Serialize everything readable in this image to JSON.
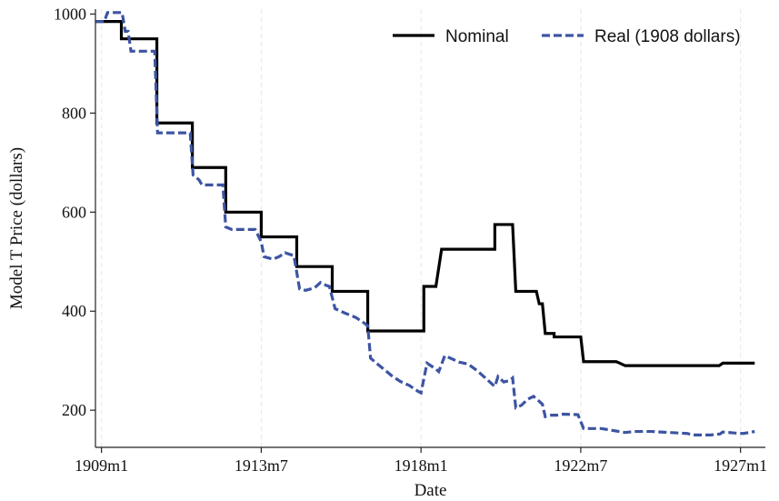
{
  "chart_data": {
    "type": "line",
    "title": "",
    "xlabel": "Date",
    "ylabel": "Model T Price (dollars)",
    "xlim": [
      1908.83,
      1927.7
    ],
    "ylim": [
      125,
      1010
    ],
    "x_ticks": [
      {
        "value": 1909.0,
        "label": "1909m1"
      },
      {
        "value": 1913.5,
        "label": "1913m7"
      },
      {
        "value": 1918.0,
        "label": "1918m1"
      },
      {
        "value": 1922.5,
        "label": "1922m7"
      },
      {
        "value": 1927.0,
        "label": "1927m1"
      }
    ],
    "y_ticks": [
      200,
      400,
      600,
      800,
      1000
    ],
    "grid": "vertical dashed at x ticks",
    "legend": {
      "placement": "top-right",
      "entries": [
        {
          "name": "Nominal",
          "color": "#000000",
          "style": "solid"
        },
        {
          "name": "Real (1908 dollars)",
          "color": "#3d54a2",
          "style": "dashed"
        }
      ]
    },
    "series": [
      {
        "name": "Nominal",
        "color": "#000000",
        "style": "solid",
        "points": [
          [
            1908.83,
            985
          ],
          [
            1909.56,
            985
          ],
          [
            1909.56,
            950
          ],
          [
            1910.56,
            950
          ],
          [
            1910.56,
            780
          ],
          [
            1911.56,
            780
          ],
          [
            1911.56,
            690
          ],
          [
            1912.5,
            690
          ],
          [
            1912.5,
            600
          ],
          [
            1913.5,
            600
          ],
          [
            1913.5,
            550
          ],
          [
            1914.5,
            550
          ],
          [
            1914.5,
            490
          ],
          [
            1915.5,
            490
          ],
          [
            1915.5,
            440
          ],
          [
            1916.5,
            440
          ],
          [
            1916.5,
            360
          ],
          [
            1918.08,
            360
          ],
          [
            1918.08,
            450
          ],
          [
            1918.42,
            450
          ],
          [
            1918.58,
            525
          ],
          [
            1920.08,
            525
          ],
          [
            1920.08,
            575
          ],
          [
            1920.58,
            575
          ],
          [
            1920.67,
            440
          ],
          [
            1921.25,
            440
          ],
          [
            1921.33,
            415
          ],
          [
            1921.42,
            415
          ],
          [
            1921.5,
            355
          ],
          [
            1921.75,
            355
          ],
          [
            1921.75,
            348
          ],
          [
            1922.5,
            348
          ],
          [
            1922.58,
            298
          ],
          [
            1923.5,
            298
          ],
          [
            1923.6,
            295
          ],
          [
            1923.75,
            290
          ],
          [
            1926.4,
            290
          ],
          [
            1926.5,
            295
          ],
          [
            1927.4,
            295
          ]
        ]
      },
      {
        "name": "Real (1908 dollars)",
        "color": "#3d54a2",
        "style": "dashed",
        "points": [
          [
            1908.83,
            985
          ],
          [
            1909.08,
            985
          ],
          [
            1909.17,
            1003
          ],
          [
            1909.58,
            1003
          ],
          [
            1909.67,
            965
          ],
          [
            1909.75,
            965
          ],
          [
            1909.83,
            925
          ],
          [
            1910.5,
            925
          ],
          [
            1910.58,
            760
          ],
          [
            1911.5,
            760
          ],
          [
            1911.58,
            675
          ],
          [
            1911.75,
            665
          ],
          [
            1911.83,
            655
          ],
          [
            1912.42,
            655
          ],
          [
            1912.5,
            570
          ],
          [
            1912.67,
            565
          ],
          [
            1913.33,
            565
          ],
          [
            1913.5,
            540
          ],
          [
            1913.58,
            510
          ],
          [
            1913.83,
            505
          ],
          [
            1914.0,
            510
          ],
          [
            1914.17,
            518
          ],
          [
            1914.42,
            512
          ],
          [
            1914.58,
            445
          ],
          [
            1914.75,
            442
          ],
          [
            1915.0,
            447
          ],
          [
            1915.17,
            458
          ],
          [
            1915.33,
            452
          ],
          [
            1915.42,
            450
          ],
          [
            1915.58,
            405
          ],
          [
            1915.83,
            397
          ],
          [
            1916.17,
            387
          ],
          [
            1916.42,
            375
          ],
          [
            1916.5,
            370
          ],
          [
            1916.58,
            305
          ],
          [
            1916.83,
            290
          ],
          [
            1917.17,
            270
          ],
          [
            1917.42,
            258
          ],
          [
            1917.67,
            250
          ],
          [
            1917.92,
            238
          ],
          [
            1918.0,
            235
          ],
          [
            1918.17,
            295
          ],
          [
            1918.42,
            283
          ],
          [
            1918.5,
            278
          ],
          [
            1918.67,
            310
          ],
          [
            1918.83,
            305
          ],
          [
            1919.08,
            297
          ],
          [
            1919.33,
            293
          ],
          [
            1919.58,
            280
          ],
          [
            1919.83,
            264
          ],
          [
            1920.0,
            253
          ],
          [
            1920.08,
            248
          ],
          [
            1920.17,
            268
          ],
          [
            1920.33,
            257
          ],
          [
            1920.5,
            260
          ],
          [
            1920.58,
            265
          ],
          [
            1920.67,
            205
          ],
          [
            1920.83,
            210
          ],
          [
            1921.0,
            222
          ],
          [
            1921.17,
            228
          ],
          [
            1921.33,
            218
          ],
          [
            1921.42,
            212
          ],
          [
            1921.5,
            187
          ],
          [
            1921.67,
            190
          ],
          [
            1921.83,
            190
          ],
          [
            1922.0,
            192
          ],
          [
            1922.42,
            191
          ],
          [
            1922.58,
            163
          ],
          [
            1923.08,
            163
          ],
          [
            1923.33,
            160
          ],
          [
            1923.58,
            157
          ],
          [
            1923.75,
            155
          ],
          [
            1924.0,
            157
          ],
          [
            1924.5,
            157
          ],
          [
            1925.0,
            155
          ],
          [
            1925.5,
            153
          ],
          [
            1925.67,
            150
          ],
          [
            1926.17,
            150
          ],
          [
            1926.42,
            152
          ],
          [
            1926.5,
            156
          ],
          [
            1926.83,
            154
          ],
          [
            1927.08,
            153
          ],
          [
            1927.4,
            157
          ]
        ]
      }
    ]
  }
}
